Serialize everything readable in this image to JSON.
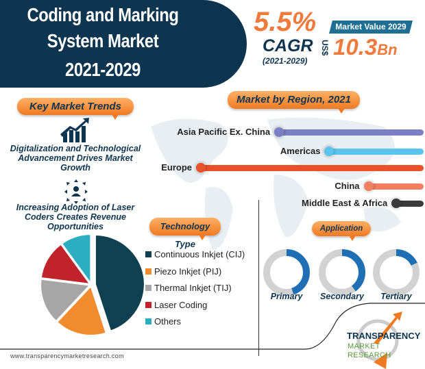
{
  "header": {
    "title_lines": [
      "Coding and Marking",
      "System Market",
      "2021-2029"
    ]
  },
  "cagr": {
    "value": "5.5%",
    "label": "CAGR",
    "period": "(2021-2029)"
  },
  "market_value": {
    "label": "Market Value 2029",
    "currency": "US$",
    "value": "10.3",
    "unit": "Bn"
  },
  "trends": {
    "heading": "Key Market Trends",
    "items": [
      "Digitalization and Technological Advancement Drives Market Growth",
      "Increasing Adoption of Laser Coders Creates Revenue Opportunities"
    ]
  },
  "colors": {
    "navy": "#0e3550",
    "orange": "#ee7a3b",
    "blue": "#1f6fb4"
  },
  "chart_data": [
    {
      "type": "bar",
      "title": "Market by Region, 2021",
      "categories": [
        "Asia Pacific Ex. China",
        "Americas",
        "Europe",
        "China",
        "Middle East & Africa"
      ],
      "values": [
        26,
        17,
        40,
        10,
        5
      ],
      "colors": [
        "#7b7fc4",
        "#5bc3ec",
        "#e8512a",
        "#f08060",
        "#3b3b3b"
      ]
    },
    {
      "type": "pie",
      "title": "Technology Type",
      "categories": [
        "Continuous Inkjet (CIJ)",
        "Piezo Inkjet (PIJ)",
        "Thermal Inkjet (TIJ)",
        "Laser Coding",
        "Others"
      ],
      "values": [
        45,
        17,
        15,
        13,
        10
      ],
      "colors": [
        "#0f4150",
        "#f28a2e",
        "#a6a6a6",
        "#c0232a",
        "#2aaec0"
      ]
    },
    {
      "type": "pie",
      "title": "Application",
      "categories": [
        "Primary",
        "Secondary",
        "Tertiary"
      ],
      "values": [
        45,
        40,
        18
      ]
    }
  ],
  "footer": {
    "url": "www.transparencymarketresearch.com",
    "logo_line1": "TRANSPARENCY",
    "logo_line2": "MARKET RESEARCH"
  }
}
